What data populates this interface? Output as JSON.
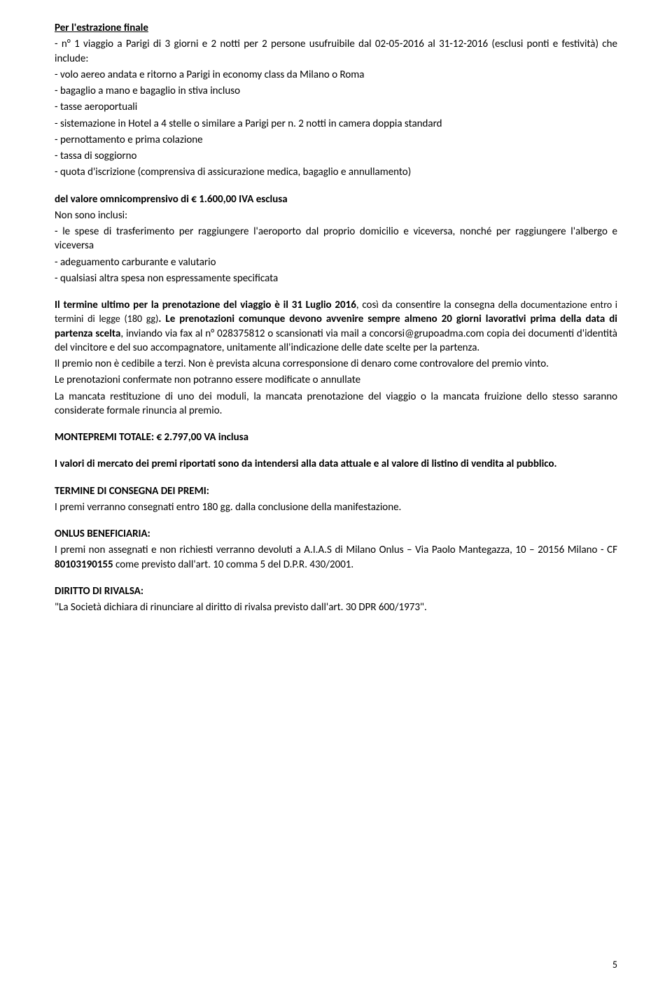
{
  "section1": {
    "title": "Per l'estrazione finale",
    "lines": [
      "- n° 1 viaggio a Parigi di 3 giorni e 2 notti per 2 persone usufruibile dal 02-05-2016 al 31-12-2016 (esclusi ponti e festività) che include:",
      "- volo aereo andata e ritorno a Parigi in economy class da Milano o Roma",
      "- bagaglio a mano e bagaglio in stiva incluso",
      "- tasse aeroportuali",
      "- sistemazione in Hotel a 4 stelle o similare a Parigi per n. 2 notti in camera doppia standard",
      "- pernottamento e prima colazione",
      "- tassa di soggiorno",
      "- quota d'iscrizione (comprensiva di assicurazione medica, bagaglio e annullamento)"
    ]
  },
  "section2": {
    "priceLine": "del valore omnicomprensivo di € 1.600,00 IVA esclusa",
    "nonInclusi": "Non sono inclusi:",
    "items": [
      "- le spese di trasferimento per raggiungere l'aeroporto dal proprio domicilio e viceversa, nonché per raggiungere l'albergo e viceversa",
      "- adeguamento carburante e valutario",
      "- qualsiasi altra spesa non espressamente specificata"
    ]
  },
  "section3": {
    "p1_bold1": "Il termine ultimo per la prenotazione del viaggio è il 31 Luglio 2016",
    "p1_mid": ", così da consentire la consegna ",
    "p1_small": "della documentazione entro i termini di legge (180 gg)",
    "p1_bold2": ". Le prenotazioni comunque devono avvenire sempre almeno 20 giorni lavorativi prima della data di partenza scelta",
    "p1_tail": ", inviando via fax al n° 028375812 o scansionati via mail a concorsi@grupoadma.com copia dei documenti d'identità del vincitore e del suo accompagnatore, unitamente all'indicazione delle date scelte per la partenza.",
    "p2": "Il premio non è cedibile a terzi. Non è prevista alcuna corresponsione di denaro come controvalore del premio vinto.",
    "p3": "Le prenotazioni confermate non potranno essere modificate o annullate",
    "p4": "La mancata restituzione di uno dei moduli, la mancata prenotazione del viaggio o la mancata fruizione dello stesso saranno considerate formale rinuncia al premio."
  },
  "section4": {
    "title": "MONTEPREMI TOTALE: € 2.797,00 VA inclusa"
  },
  "section5": {
    "text": "I valori di mercato dei premi riportati sono da intendersi alla data attuale e al valore di listino di vendita al pubblico."
  },
  "section6": {
    "title": "TERMINE DI CONSEGNA DEI PREMI:",
    "text": "I premi verranno consegnati entro 180 gg. dalla conclusione della manifestazione."
  },
  "section7": {
    "title": "ONLUS BENEFICIARIA:",
    "pre": "I premi non assegnati e non richiesti verranno devoluti a A.I.A.S di Milano Onlus – Via Paolo Mantegazza, 10 – 20156 Milano - CF ",
    "cf": "80103190155",
    "post": " come previsto dall'art. 10 comma 5 del D.P.R. 430/2001."
  },
  "section8": {
    "title": "DIRITTO DI RIVALSA:",
    "text": "\"La Società dichiara di rinunciare al diritto di rivalsa previsto dall'art. 30 DPR 600/1973\"."
  },
  "pageNumber": "5"
}
